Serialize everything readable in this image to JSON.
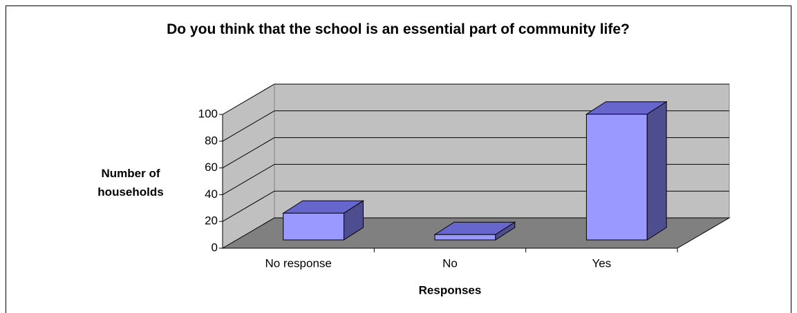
{
  "chart_data": {
    "type": "bar3d",
    "title": "Do you think that the school is an essential part of community life?",
    "x_label": "Responses",
    "y_label": "Number of households",
    "categories": [
      "No response",
      "No",
      "Yes"
    ],
    "values": [
      20,
      4,
      94
    ],
    "color": "#9999ff",
    "ylim": [
      0,
      100
    ],
    "yticks": [
      0,
      20,
      40,
      60,
      80,
      100
    ],
    "grid": true
  }
}
